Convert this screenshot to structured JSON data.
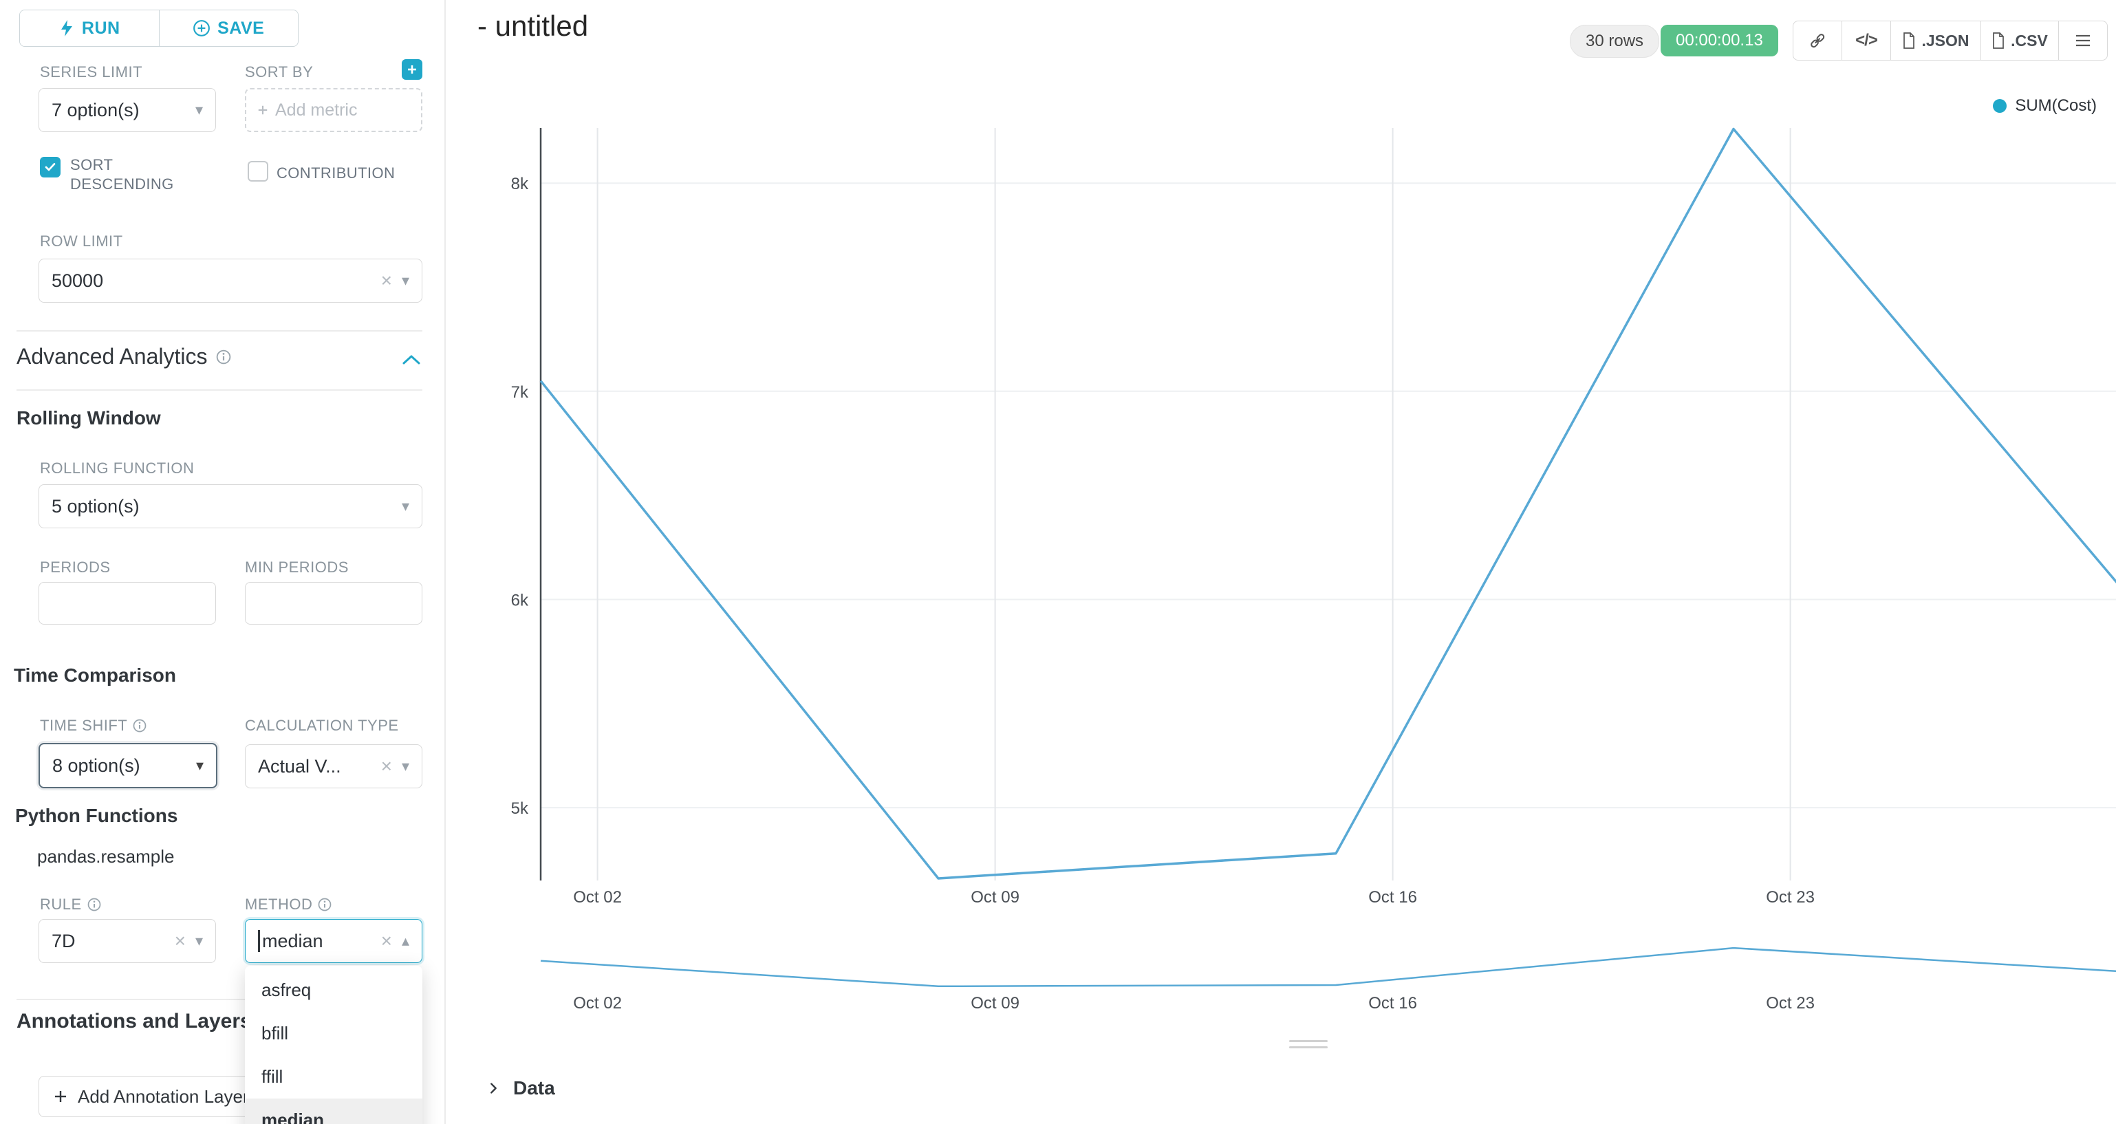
{
  "sidebar": {
    "run_label": "RUN",
    "save_label": "SAVE",
    "series_limit": {
      "label": "SERIES LIMIT",
      "value": "7 option(s)"
    },
    "sort_by": {
      "label": "SORT BY",
      "placeholder": "Add metric"
    },
    "sort_descending": {
      "label": "SORT DESCENDING",
      "checked": true
    },
    "contribution": {
      "label": "CONTRIBUTION",
      "checked": false
    },
    "row_limit": {
      "label": "ROW LIMIT",
      "value": "50000"
    },
    "advanced_analytics_title": "Advanced Analytics",
    "rolling_window": {
      "title": "Rolling Window",
      "rolling_function": {
        "label": "ROLLING FUNCTION",
        "value": "5 option(s)"
      },
      "periods": {
        "label": "PERIODS",
        "value": ""
      },
      "min_periods": {
        "label": "MIN PERIODS",
        "value": ""
      }
    },
    "time_comparison": {
      "title": "Time Comparison",
      "time_shift": {
        "label": "TIME SHIFT",
        "value": "8 option(s)"
      },
      "calculation_type": {
        "label": "CALCULATION TYPE",
        "value": "Actual V..."
      }
    },
    "python_functions": {
      "title": "Python Functions",
      "subtitle": "pandas.resample",
      "rule": {
        "label": "RULE",
        "value": "7D"
      },
      "method": {
        "label": "METHOD",
        "value": "median",
        "selected": "median",
        "options": [
          "asfreq",
          "bfill",
          "ffill",
          "median"
        ]
      }
    },
    "annotations": {
      "title": "Annotations and Layers",
      "add_button_label": "Add Annotation Layer"
    }
  },
  "header": {
    "title": "- untitled",
    "rows_badge": "30 rows",
    "timer_badge": "00:00:00.13",
    "json_label": ".JSON",
    "csv_label": ".CSV",
    "icons": [
      "link-icon",
      "embed-code-icon",
      "json-file-icon",
      "csv-file-icon",
      "menu-icon"
    ]
  },
  "data_panel": {
    "label": "Data"
  },
  "chart_data": {
    "type": "line",
    "title": "",
    "x_tick_labels": [
      "Oct 02",
      "Oct 09",
      "Oct 16",
      "Oct 23"
    ],
    "y_tick_labels": [
      "8k",
      "7k",
      "6k",
      "5k"
    ],
    "y_tick_values": [
      8000,
      7000,
      6000,
      5000
    ],
    "ylim": [
      4650,
      8265
    ],
    "series": [
      {
        "name": "SUM(Cost)",
        "x": [
          "Oct 01",
          "Oct 08",
          "Oct 15",
          "Oct 22",
          "Oct 29"
        ],
        "values": [
          7050,
          4660,
          4780,
          8260,
          6000
        ]
      }
    ],
    "legend": [
      "SUM(Cost)"
    ],
    "legend_position": "top-right",
    "grid": true,
    "line_color": "#58A9D5",
    "legend_dot_color": "#1FA8C9",
    "has_preview_minichart": true
  },
  "colors": {
    "primary": "#20A7C9",
    "success_badge": "#5AC189",
    "checkbox": "#20A7C9"
  }
}
